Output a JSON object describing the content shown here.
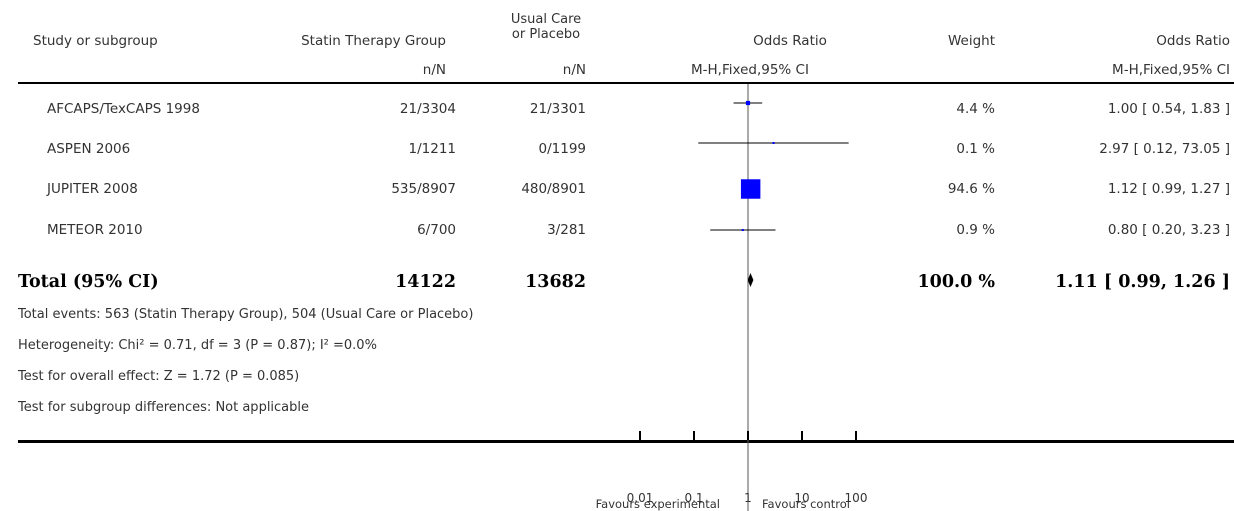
{
  "headers": {
    "study": "Study or subgroup",
    "treatment": "Statin Therapy Group",
    "control_line1": "Usual Care",
    "control_line2": "or Placebo",
    "plot": "Odds Ratio",
    "weight": "Weight",
    "effect": "Odds Ratio",
    "treatment_sub": "n/N",
    "control_sub": "n/N",
    "plot_sub": "M-H,Fixed,95% CI",
    "effect_sub": "M-H,Fixed,95% CI"
  },
  "studies": [
    {
      "name": "AFCAPS/TexCAPS 1998",
      "treatment": "21/3304",
      "control": "21/3301",
      "weight": "4.4 %",
      "effect": "1.00 [ 0.54, 1.83 ]"
    },
    {
      "name": "ASPEN 2006",
      "treatment": "1/1211",
      "control": "0/1199",
      "weight": "0.1 %",
      "effect": "2.97 [ 0.12, 73.05 ]"
    },
    {
      "name": "JUPITER 2008",
      "treatment": "535/8907",
      "control": "480/8901",
      "weight": "94.6 %",
      "effect": "1.12 [ 0.99, 1.27 ]"
    },
    {
      "name": "METEOR 2010",
      "treatment": "6/700",
      "control": "3/281",
      "weight": "0.9 %",
      "effect": "0.80 [ 0.20, 3.23 ]"
    }
  ],
  "total": {
    "label": "Total (95% CI)",
    "treatment": "14122",
    "control": "13682",
    "weight": "100.0 %",
    "effect": "1.11 [ 0.99, 1.26 ]"
  },
  "notes": [
    "Total events: 563 (Statin Therapy Group), 504 (Usual Care or Placebo)",
    "Heterogeneity: Chi² = 0.71, df = 3 (P = 0.87); I² =0.0%",
    "Test for overall effect: Z = 1.72 (P = 0.085)",
    "Test for subgroup differences: Not applicable"
  ],
  "axis": {
    "ticks": [
      "0.01",
      "0.1",
      "1",
      "10",
      "100"
    ],
    "favours_left": "Favours experimental",
    "favours_right": "Favours control"
  },
  "chart_data": {
    "type": "forest",
    "scale": "log",
    "xlim": [
      0.01,
      100
    ],
    "tick_values": [
      0.01,
      0.1,
      1,
      10,
      100
    ],
    "reference_line": 1,
    "marker_color": "#0000ff",
    "studies": [
      {
        "name": "AFCAPS/TexCAPS 1998",
        "or": 1.0,
        "lo": 0.54,
        "hi": 1.83,
        "weight": 4.4
      },
      {
        "name": "ASPEN 2006",
        "or": 2.97,
        "lo": 0.12,
        "hi": 73.05,
        "weight": 0.1
      },
      {
        "name": "JUPITER 2008",
        "or": 1.12,
        "lo": 0.99,
        "hi": 1.27,
        "weight": 94.6
      },
      {
        "name": "METEOR 2010",
        "or": 0.8,
        "lo": 0.2,
        "hi": 3.23,
        "weight": 0.9
      }
    ],
    "pooled": {
      "or": 1.11,
      "lo": 0.99,
      "hi": 1.26
    }
  }
}
